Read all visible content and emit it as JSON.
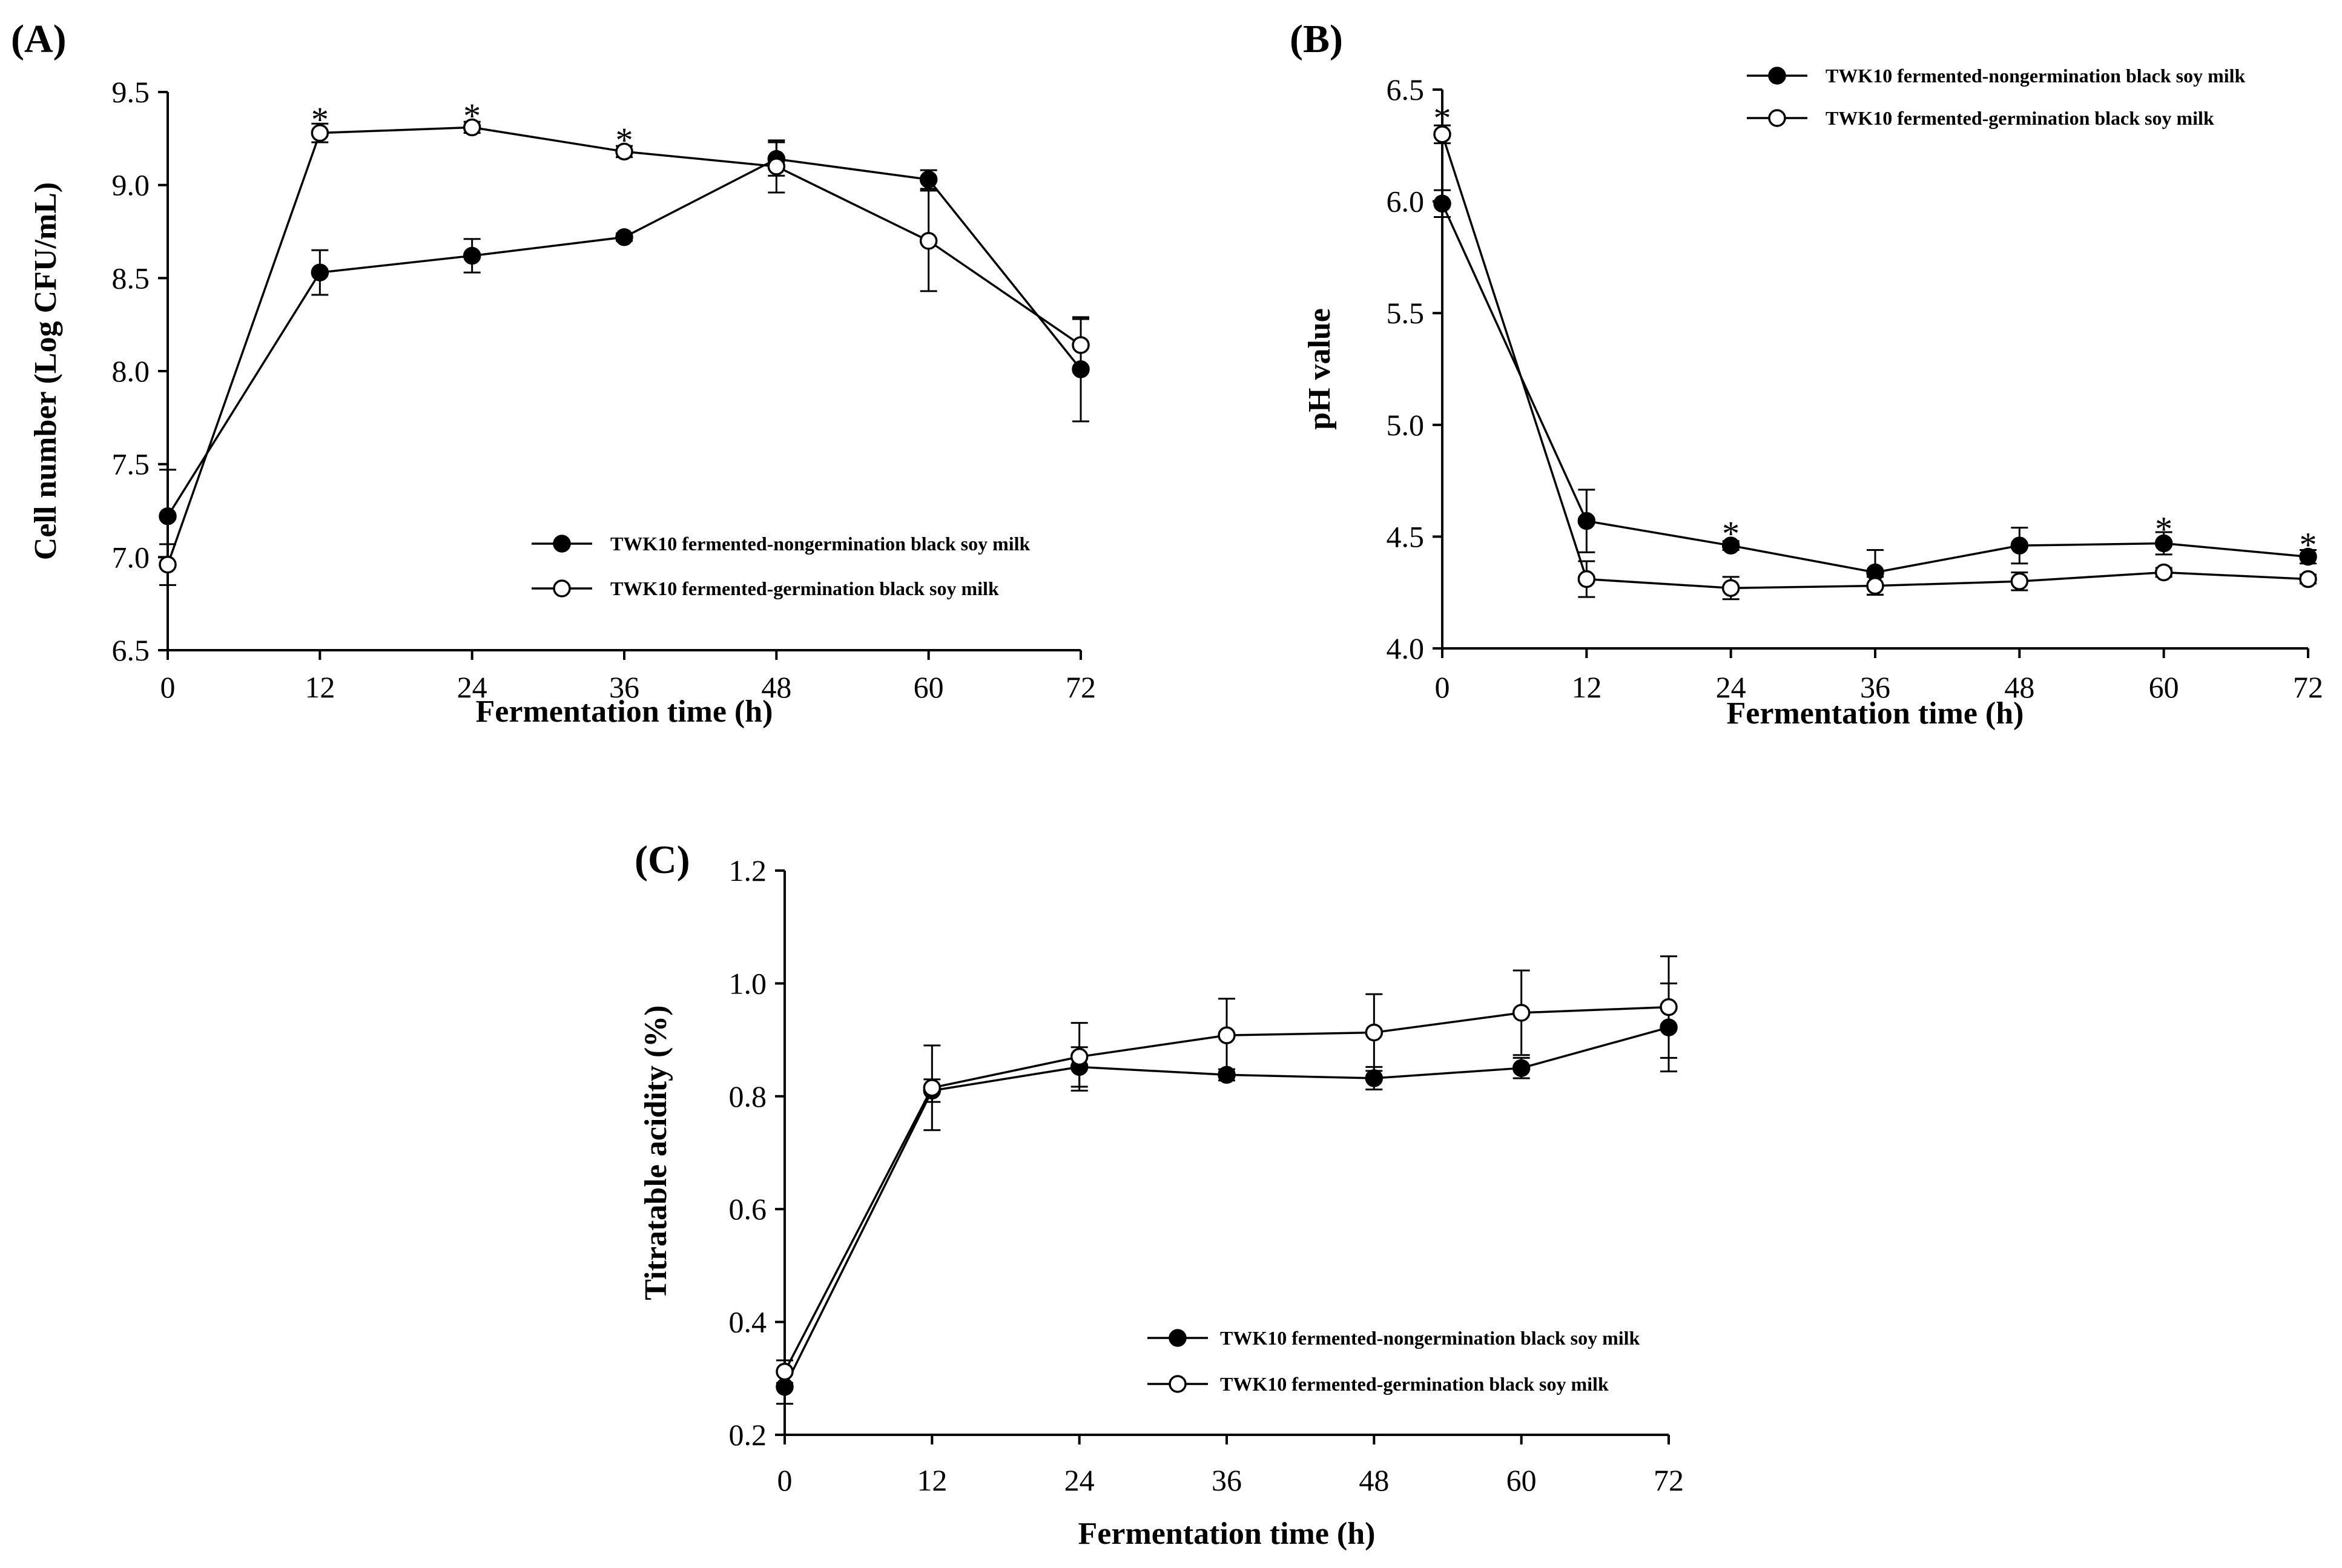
{
  "chart_data": [
    {
      "panel": "(A)",
      "type": "line",
      "title": "",
      "xlabel": "Fermentation time (h)",
      "ylabel": "Cell number (Log CFU/mL)",
      "xlim": [
        0,
        72
      ],
      "ylim": [
        6.5,
        9.5
      ],
      "xticks": [
        0,
        12,
        24,
        36,
        48,
        60,
        72
      ],
      "xtick_labels": [
        "0",
        "12",
        "24",
        "36",
        "48",
        "60",
        "72"
      ],
      "yticks": [
        6.5,
        7.0,
        7.5,
        8.0,
        8.5,
        9.0,
        9.5
      ],
      "ytick_labels": [
        "6.5",
        "7.0",
        "7.5",
        "8.0",
        "8.5",
        "9.0",
        "9.5"
      ],
      "legend_position": "lower-right",
      "x": [
        0,
        12,
        24,
        36,
        48,
        60,
        72
      ],
      "series": [
        {
          "name": "TWK10 fermented-nongermination black soy milk",
          "marker": "filled",
          "values": [
            7.22,
            8.53,
            8.62,
            8.72,
            9.14,
            9.03,
            8.01
          ],
          "errors": [
            0.25,
            0.12,
            0.09,
            0.02,
            0.09,
            0.05,
            0.28
          ]
        },
        {
          "name": "TWK10 fermented-germination black soy milk",
          "marker": "open",
          "values": [
            6.96,
            9.28,
            9.31,
            9.18,
            9.1,
            8.7,
            8.14
          ],
          "errors": [
            0.11,
            0.05,
            0.03,
            0.03,
            0.14,
            0.27,
            0.14
          ]
        }
      ],
      "significance": [
        {
          "x": 12,
          "y": 9.36,
          "label": "*"
        },
        {
          "x": 24,
          "y": 9.38,
          "label": "*"
        },
        {
          "x": 36,
          "y": 9.25,
          "label": "*"
        }
      ]
    },
    {
      "panel": "(B)",
      "type": "line",
      "title": "",
      "xlabel": "Fermentation time (h)",
      "ylabel": "pH value",
      "xlim": [
        0,
        72
      ],
      "ylim": [
        4.0,
        6.5
      ],
      "xticks": [
        0,
        12,
        24,
        36,
        48,
        60,
        72
      ],
      "xtick_labels": [
        "0",
        "12",
        "24",
        "36",
        "48",
        "60",
        "72"
      ],
      "yticks": [
        4.0,
        4.5,
        5.0,
        5.5,
        6.0,
        6.5
      ],
      "ytick_labels": [
        "4.0",
        "4.5",
        "5.0",
        "5.5",
        "6.0",
        "6.5"
      ],
      "legend_position": "top-right",
      "x": [
        0,
        12,
        24,
        36,
        48,
        60,
        72
      ],
      "series": [
        {
          "name": "TWK10 fermented-nongermination black soy milk",
          "marker": "filled",
          "values": [
            5.99,
            4.57,
            4.46,
            4.34,
            4.46,
            4.47,
            4.41
          ],
          "errors": [
            0.06,
            0.14,
            0.02,
            0.1,
            0.08,
            0.05,
            0.03
          ]
        },
        {
          "name": "TWK10 fermented-germination black soy milk",
          "marker": "open",
          "values": [
            6.3,
            4.31,
            4.27,
            4.28,
            4.3,
            4.34,
            4.31
          ],
          "errors": [
            0.04,
            0.08,
            0.05,
            0.04,
            0.04,
            0.02,
            0.02
          ]
        }
      ],
      "significance": [
        {
          "x": 0,
          "y": 6.38,
          "label": "*"
        },
        {
          "x": 24,
          "y": 4.52,
          "label": "*"
        },
        {
          "x": 60,
          "y": 4.54,
          "label": "*"
        },
        {
          "x": 72,
          "y": 4.47,
          "label": "*"
        }
      ]
    },
    {
      "panel": "(C)",
      "type": "line",
      "title": "",
      "xlabel": "Fermentation time (h)",
      "ylabel": "Titratable acidity (%)",
      "xlim": [
        0,
        72
      ],
      "ylim": [
        0.2,
        1.2
      ],
      "xticks": [
        0,
        12,
        24,
        36,
        48,
        60,
        72
      ],
      "xtick_labels": [
        "0",
        "12",
        "24",
        "36",
        "48",
        "60",
        "72"
      ],
      "yticks": [
        0.2,
        0.4,
        0.6,
        0.8,
        1.0,
        1.2
      ],
      "ytick_labels": [
        "0.2",
        "0.4",
        "0.6",
        "0.8",
        "1.0",
        "1.2"
      ],
      "legend_position": "lower-right",
      "x": [
        0,
        12,
        24,
        36,
        48,
        60,
        72
      ],
      "series": [
        {
          "name": "TWK10 fermented-nongermination black soy milk",
          "marker": "filled",
          "values": [
            0.285,
            0.81,
            0.852,
            0.838,
            0.832,
            0.85,
            0.922
          ],
          "errors": [
            0.03,
            0.02,
            0.035,
            0.01,
            0.02,
            0.018,
            0.078
          ]
        },
        {
          "name": "TWK10 fermented-germination black soy milk",
          "marker": "open",
          "values": [
            0.312,
            0.815,
            0.87,
            0.908,
            0.913,
            0.948,
            0.958
          ],
          "errors": [
            0.02,
            0.075,
            0.06,
            0.065,
            0.068,
            0.075,
            0.09
          ]
        }
      ],
      "significance": []
    }
  ]
}
